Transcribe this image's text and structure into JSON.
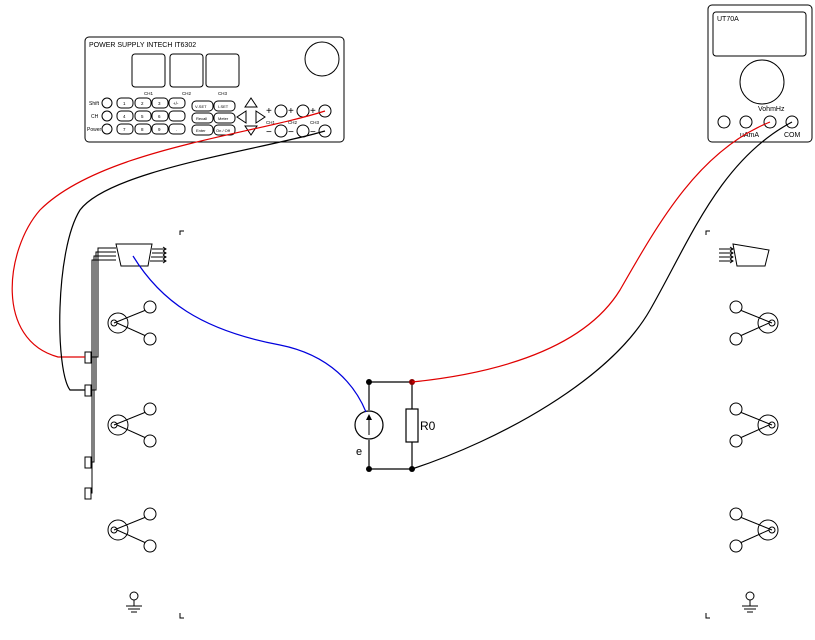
{
  "power_supply": {
    "title": "POWER SUPPLY INTECH IT6302",
    "display_labels": [
      "CH1",
      "CH2",
      "CH3"
    ],
    "side_labels": [
      "Shift",
      "CH",
      "Power"
    ],
    "keypad": [
      "1",
      "2",
      "3",
      "+/-",
      "4",
      "5",
      "6",
      "",
      "7",
      "8",
      "9",
      "."
    ],
    "function_keys": [
      "V-SET",
      "I-SET",
      "Recall",
      "Meter",
      "Enter",
      "On / Off"
    ],
    "channel_labels": [
      "CH1",
      "CH2",
      "CH3"
    ],
    "plus_sign": "+",
    "minus_sign": "−"
  },
  "multimeter": {
    "title": "UT70A",
    "label_vohmhz": "VohmHz",
    "label_uama": "uAmA",
    "label_com": "COM"
  },
  "circuit": {
    "source_label": "e",
    "resistor_label": "R0"
  },
  "wire_colors": {
    "red": "#e00000",
    "black": "#000000",
    "blue": "#0000dd"
  }
}
